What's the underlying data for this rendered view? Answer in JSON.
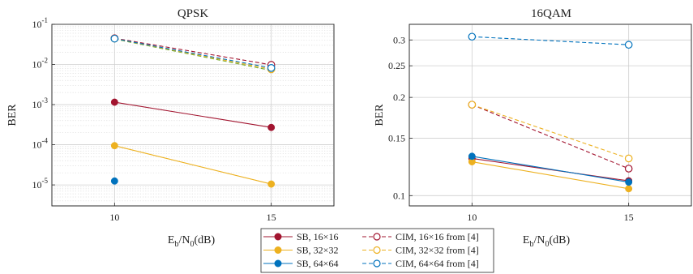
{
  "chart_data": [
    {
      "type": "line",
      "title": "QPSK",
      "xlabel": {
        "main": "E",
        "sub1": "b",
        "mid": "/N",
        "sub2": "0",
        "tail": "(dB)"
      },
      "ylabel": "BER",
      "yscale": "log",
      "xlim": [
        8,
        17
      ],
      "ylim": [
        3e-06,
        0.1
      ],
      "xticks": [
        10,
        15
      ],
      "yticks": [
        {
          "value": 1e-05,
          "base": "10",
          "exp": "-5"
        },
        {
          "value": 0.0001,
          "base": "10",
          "exp": "-4"
        },
        {
          "value": 0.001,
          "base": "10",
          "exp": "-3"
        },
        {
          "value": 0.01,
          "base": "10",
          "exp": "-2"
        },
        {
          "value": 0.1,
          "base": "10",
          "exp": "-1"
        }
      ],
      "grid": true,
      "series": [
        {
          "name": "SB, 16×16",
          "color": "#A2142F",
          "style": "solid",
          "marker": "filled",
          "x": [
            10,
            15
          ],
          "y": [
            0.00115,
            0.00027
          ]
        },
        {
          "name": "SB, 32×32",
          "color": "#EDB120",
          "style": "solid",
          "marker": "filled",
          "x": [
            10,
            15
          ],
          "y": [
            9.5e-05,
            1.05e-05
          ]
        },
        {
          "name": "SB, 64×64",
          "color": "#0072BD",
          "style": "solid",
          "marker": "filled",
          "x": [
            10
          ],
          "y": [
            1.25e-05
          ]
        },
        {
          "name": "CIM, 16×16 from [4]",
          "color": "#A2142F",
          "style": "dashed",
          "marker": "open",
          "x": [
            10,
            15
          ],
          "y": [
            0.045,
            0.0098
          ]
        },
        {
          "name": "CIM, 32×32 from [4]",
          "color": "#EDB120",
          "style": "dashed",
          "marker": "open",
          "x": [
            10,
            15
          ],
          "y": [
            0.044,
            0.0076
          ]
        },
        {
          "name": "CIM, 64×64 from [4]",
          "color": "#0072BD",
          "style": "dashed",
          "marker": "open",
          "x": [
            10,
            15
          ],
          "y": [
            0.044,
            0.0082
          ]
        }
      ],
      "extra_lines": [
        {
          "color": "#77AC30",
          "style": "dashed",
          "x": [
            10,
            15
          ],
          "y": [
            0.043,
            0.0071
          ]
        }
      ]
    },
    {
      "type": "line",
      "title": "16QAM",
      "xlabel": {
        "main": "E",
        "sub1": "b",
        "mid": "/N",
        "sub2": "0",
        "tail": "(dB)"
      },
      "ylabel": "BER",
      "yscale": "log",
      "xlim": [
        8,
        17
      ],
      "ylim": [
        0.093,
        0.335
      ],
      "xticks": [
        10,
        15
      ],
      "yticks": [
        {
          "value": 0.1,
          "label": "0.1"
        },
        {
          "value": 0.15,
          "label": "0.15"
        },
        {
          "value": 0.2,
          "label": "0.2"
        },
        {
          "value": 0.25,
          "label": "0.25"
        },
        {
          "value": 0.3,
          "label": "0.3"
        }
      ],
      "grid": true,
      "series": [
        {
          "name": "SB, 16×16",
          "color": "#A2142F",
          "style": "solid",
          "marker": "filled",
          "x": [
            10,
            15
          ],
          "y": [
            0.13,
            0.111
          ]
        },
        {
          "name": "SB, 32×32",
          "color": "#EDB120",
          "style": "solid",
          "marker": "filled",
          "x": [
            10,
            15
          ],
          "y": [
            0.127,
            0.105
          ]
        },
        {
          "name": "SB, 64×64",
          "color": "#0072BD",
          "style": "solid",
          "marker": "filled",
          "x": [
            10,
            15
          ],
          "y": [
            0.132,
            0.11
          ]
        },
        {
          "name": "CIM, 16×16 from [4]",
          "color": "#A2142F",
          "style": "dashed",
          "marker": "open",
          "x": [
            10,
            15
          ],
          "y": [
            0.19,
            0.121
          ]
        },
        {
          "name": "CIM, 32×32 from [4]",
          "color": "#EDB120",
          "style": "dashed",
          "marker": "open",
          "x": [
            10,
            15
          ],
          "y": [
            0.19,
            0.13
          ]
        },
        {
          "name": "CIM, 64×64 from [4]",
          "color": "#0072BD",
          "style": "dashed",
          "marker": "open",
          "x": [
            10,
            15
          ],
          "y": [
            0.307,
            0.29
          ]
        }
      ]
    }
  ],
  "legend": {
    "placement": "bottom-center",
    "columns": [
      [
        "SB, 16×16",
        "SB, 32×32",
        "SB, 64×64"
      ],
      [
        "CIM, 16×16 from [4]",
        "CIM, 32×32 from [4]",
        "CIM, 64×64 from [4]"
      ]
    ]
  }
}
